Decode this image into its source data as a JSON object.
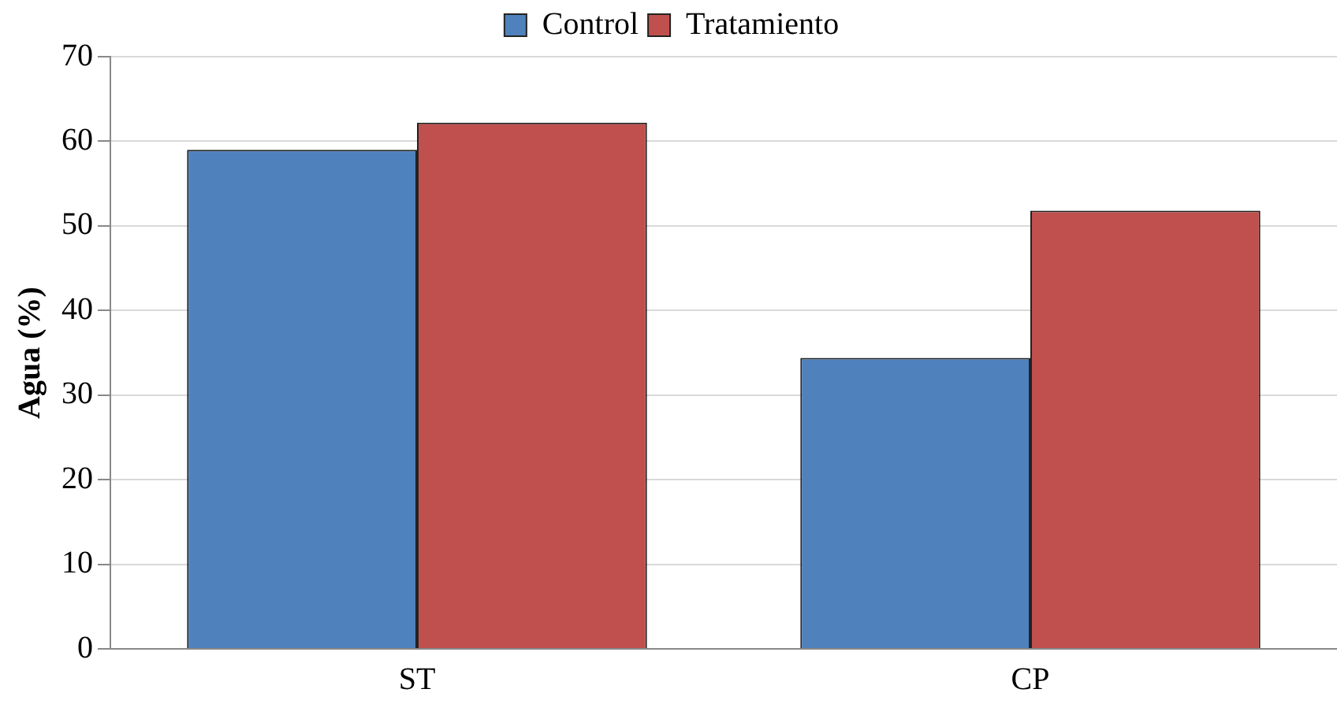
{
  "chart_data": {
    "type": "bar",
    "ylabel": "Agua (%)",
    "categories": [
      "ST",
      "CP"
    ],
    "series": [
      {
        "name": "Control",
        "color": "#4f81bd",
        "values": [
          59.0,
          34.4
        ]
      },
      {
        "name": "Tratamiento",
        "color": "#c0504d",
        "values": [
          62.2,
          51.8
        ]
      }
    ],
    "ylim": [
      0,
      70
    ],
    "yticks": [
      0,
      10,
      20,
      30,
      40,
      50,
      60,
      70
    ],
    "grid": "y",
    "legend": "top"
  }
}
